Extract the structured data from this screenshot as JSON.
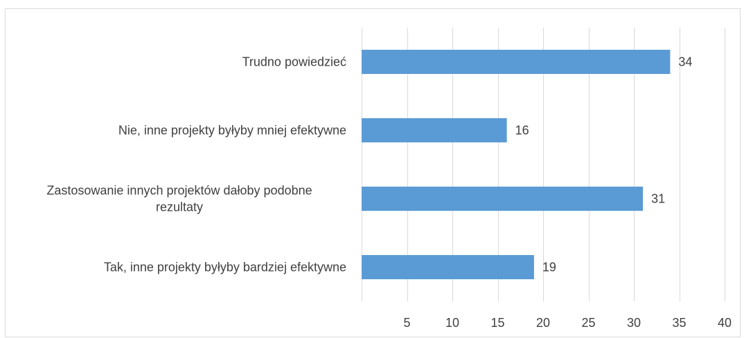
{
  "chart_data": {
    "type": "bar",
    "orientation": "horizontal",
    "title": "",
    "xlabel": "",
    "ylabel": "",
    "categories": [
      "Trudno powiedzieć",
      "Nie, inne projekty byłyby mniej efektywne",
      "Zastosowanie innych projektów dałoby podobne rezultaty",
      "Tak, inne projekty byłyby bardziej efektywne"
    ],
    "category_lines": [
      [
        "Trudno powiedzieć"
      ],
      [
        "Nie, inne projekty byłyby mniej efektywne"
      ],
      [
        "Zastosowanie innych projektów dałoby podobne",
        "rezultaty"
      ],
      [
        "Tak, inne projekty byłyby bardziej efektywne"
      ]
    ],
    "values": [
      34,
      16,
      31,
      19
    ],
    "data_labels": [
      "34",
      "16",
      "31",
      "19"
    ],
    "xlim": [
      0,
      40
    ],
    "x_ticks": [
      5,
      10,
      15,
      20,
      25,
      30,
      35,
      40
    ],
    "x_tick_labels": [
      "5",
      "10",
      "15",
      "20",
      "25",
      "30",
      "35",
      "40"
    ],
    "grid": "vertical",
    "legend": "none",
    "bar_color": "#5b9bd5",
    "grid_color": "#d9d9d9",
    "text_color": "#404040"
  }
}
